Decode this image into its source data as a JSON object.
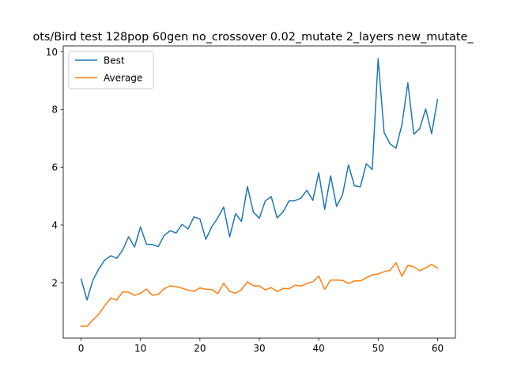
{
  "chart_data": {
    "type": "line",
    "title": "ots/Bird test 128pop 60gen no_crossover 0.02_mutate 2_layers new_mutate_",
    "xlabel": "",
    "ylabel": "",
    "xlim": [
      -3,
      63
    ],
    "ylim": [
      0.08,
      10.2
    ],
    "xticks": [
      0,
      10,
      20,
      30,
      40,
      50,
      60
    ],
    "yticks": [
      2,
      4,
      6,
      8,
      10
    ],
    "legend_position": "top-left",
    "grid": false,
    "x": [
      0,
      1,
      2,
      3,
      4,
      5,
      6,
      7,
      8,
      9,
      10,
      11,
      12,
      13,
      14,
      15,
      16,
      17,
      18,
      19,
      20,
      21,
      22,
      23,
      24,
      25,
      26,
      27,
      28,
      29,
      30,
      31,
      32,
      33,
      34,
      35,
      36,
      37,
      38,
      39,
      40,
      41,
      42,
      43,
      44,
      45,
      46,
      47,
      48,
      49,
      50,
      51,
      52,
      53,
      54,
      55,
      56,
      57,
      58,
      59,
      60
    ],
    "series": [
      {
        "name": "Best",
        "color": "#1f77b4",
        "values": [
          2.13,
          1.4,
          2.09,
          2.48,
          2.79,
          2.93,
          2.84,
          3.13,
          3.59,
          3.23,
          3.93,
          3.33,
          3.32,
          3.25,
          3.64,
          3.8,
          3.72,
          4.02,
          3.86,
          4.28,
          4.21,
          3.5,
          3.94,
          4.24,
          4.62,
          3.59,
          4.39,
          4.12,
          5.33,
          4.44,
          4.23,
          4.83,
          4.98,
          4.24,
          4.45,
          4.83,
          4.84,
          4.93,
          5.2,
          4.85,
          5.8,
          4.54,
          5.7,
          4.64,
          5.04,
          6.08,
          5.36,
          5.32,
          6.12,
          5.92,
          9.76,
          7.2,
          6.81,
          6.66,
          7.47,
          8.92,
          7.14,
          7.34,
          8.02,
          7.16,
          8.35
        ]
      },
      {
        "name": "Average",
        "color": "#ff7f0e",
        "values": [
          0.49,
          0.49,
          0.71,
          0.91,
          1.21,
          1.46,
          1.4,
          1.68,
          1.67,
          1.56,
          1.63,
          1.78,
          1.56,
          1.6,
          1.79,
          1.89,
          1.86,
          1.81,
          1.74,
          1.7,
          1.82,
          1.77,
          1.76,
          1.62,
          1.98,
          1.7,
          1.63,
          1.76,
          2.03,
          1.89,
          1.89,
          1.75,
          1.83,
          1.69,
          1.8,
          1.79,
          1.91,
          1.88,
          1.97,
          2.03,
          2.23,
          1.77,
          2.09,
          2.09,
          2.08,
          1.97,
          2.06,
          2.06,
          2.17,
          2.27,
          2.3,
          2.38,
          2.43,
          2.69,
          2.22,
          2.6,
          2.55,
          2.41,
          2.51,
          2.63,
          2.5
        ]
      }
    ]
  }
}
